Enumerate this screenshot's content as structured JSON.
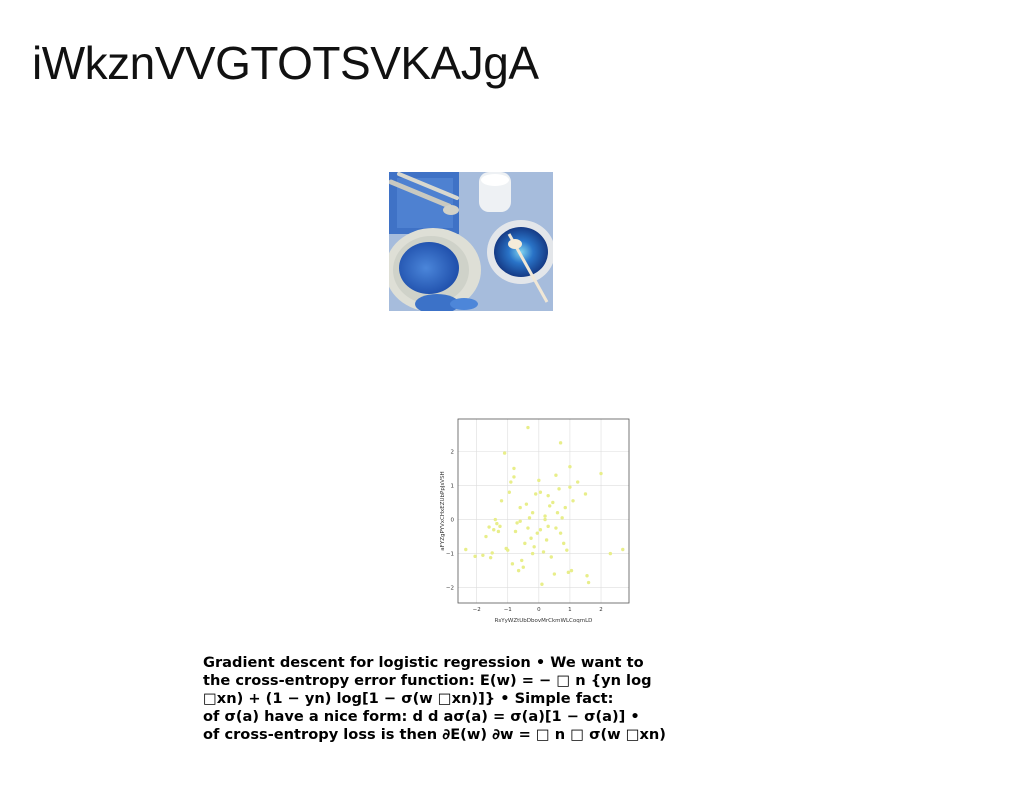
{
  "slide": {
    "title": "iWkznVVGTOTSVKAJgA",
    "text_lines": [
      "Gradient descent for logistic regression • We want to",
      "the cross-entropy error function: E(w) = − □ n {yn log",
      "□xn) + (1 − yn) log[1 − σ(w □xn)]} • Simple fact:",
      "of σ(a) have a nice form: d d aσ(a) = σ(a)[1 − σ(a)] •",
      "of cross-entropy loss is then ∂E(w) ∂w = □ n □ σ(w □xn)"
    ]
  },
  "photo": {
    "subject": "blue food styling with honey dipper, spoons, plate and milk jar",
    "colors": {
      "background": "#9fb6d8",
      "plate": "#dcdcd2",
      "spread": "#2f63c2",
      "bowl": "#1d3f8f"
    }
  },
  "chart_data": {
    "type": "scatter",
    "xlabel": "RsYyWZtUbDbovMrCkmWLCoqmLD",
    "ylabel": "aFYZgPYVxCHxEZUbPpJsVSH",
    "xlim": [
      -2.6,
      2.9
    ],
    "ylim": [
      -2.45,
      2.95
    ],
    "x_ticks": [
      "−2",
      "−1",
      "0",
      "1",
      "2"
    ],
    "y_ticks": [
      "−2",
      "−1",
      "0",
      "1",
      "2"
    ],
    "grid": true,
    "point_color": "#e8ee8a",
    "points": [
      [
        -2.35,
        -0.88
      ],
      [
        -2.05,
        -1.08
      ],
      [
        -1.8,
        -1.05
      ],
      [
        -1.7,
        -0.5
      ],
      [
        -1.6,
        -0.22
      ],
      [
        -1.55,
        -1.12
      ],
      [
        -1.5,
        -0.98
      ],
      [
        -1.45,
        -0.3
      ],
      [
        -1.4,
        0.0
      ],
      [
        -1.35,
        -0.12
      ],
      [
        -1.3,
        -0.35
      ],
      [
        -1.25,
        -0.2
      ],
      [
        -1.2,
        0.55
      ],
      [
        -1.1,
        1.95
      ],
      [
        -1.05,
        -0.85
      ],
      [
        -1.0,
        -0.9
      ],
      [
        -0.95,
        0.8
      ],
      [
        -0.9,
        1.1
      ],
      [
        -0.85,
        -1.3
      ],
      [
        -0.8,
        1.5
      ],
      [
        -0.8,
        1.25
      ],
      [
        -0.75,
        -0.35
      ],
      [
        -0.7,
        -0.1
      ],
      [
        -0.65,
        -1.5
      ],
      [
        -0.6,
        -0.05
      ],
      [
        -0.55,
        -1.2
      ],
      [
        -0.5,
        -1.4
      ],
      [
        -0.45,
        -0.7
      ],
      [
        -0.4,
        0.45
      ],
      [
        -0.35,
        -0.25
      ],
      [
        -0.3,
        0.05
      ],
      [
        -0.25,
        -0.55
      ],
      [
        -0.2,
        0.2
      ],
      [
        -0.15,
        -0.8
      ],
      [
        -0.1,
        0.75
      ],
      [
        -0.05,
        -0.4
      ],
      [
        0.0,
        1.15
      ],
      [
        0.05,
        0.8
      ],
      [
        0.1,
        -1.9
      ],
      [
        0.15,
        -0.95
      ],
      [
        0.2,
        0.1
      ],
      [
        0.25,
        -0.6
      ],
      [
        0.3,
        -0.2
      ],
      [
        0.3,
        0.7
      ],
      [
        0.35,
        0.4
      ],
      [
        0.4,
        -1.1
      ],
      [
        0.45,
        0.5
      ],
      [
        0.5,
        -1.6
      ],
      [
        0.55,
        -0.25
      ],
      [
        0.6,
        0.2
      ],
      [
        0.65,
        0.9
      ],
      [
        0.7,
        -0.4
      ],
      [
        0.75,
        0.05
      ],
      [
        0.8,
        -0.7
      ],
      [
        0.85,
        0.35
      ],
      [
        0.9,
        -0.9
      ],
      [
        0.95,
        -1.55
      ],
      [
        1.0,
        0.95
      ],
      [
        1.05,
        -1.5
      ],
      [
        1.1,
        0.55
      ],
      [
        1.25,
        1.1
      ],
      [
        1.5,
        0.75
      ],
      [
        1.55,
        -1.65
      ],
      [
        1.6,
        -1.85
      ],
      [
        2.0,
        1.35
      ],
      [
        2.3,
        -1.0
      ],
      [
        2.7,
        -0.88
      ],
      [
        -0.35,
        2.7
      ],
      [
        0.7,
        2.25
      ],
      [
        1.0,
        1.55
      ],
      [
        0.2,
        0.0
      ],
      [
        -0.6,
        0.35
      ],
      [
        0.05,
        -0.3
      ],
      [
        0.55,
        1.3
      ],
      [
        -0.2,
        -1.0
      ]
    ]
  }
}
